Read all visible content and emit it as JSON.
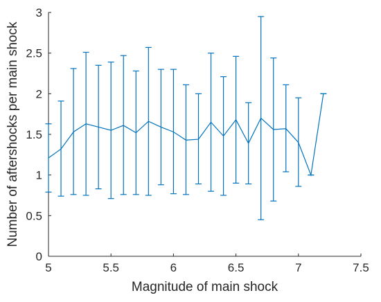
{
  "chart_data": {
    "type": "line",
    "title": "",
    "xlabel": "Magnitude of main shock",
    "ylabel": "Number of aftershocks per main shock",
    "xlim": [
      5,
      7.5
    ],
    "ylim": [
      0,
      3
    ],
    "xticks": [
      5,
      5.5,
      6,
      6.5,
      7,
      7.5
    ],
    "xtick_labels": [
      "5",
      "5.5",
      "6",
      "6.5",
      "7",
      "7.5"
    ],
    "yticks": [
      0,
      0.5,
      1,
      1.5,
      2,
      2.5,
      3
    ],
    "ytick_labels": [
      "0",
      "0.5",
      "1",
      "1.5",
      "2",
      "2.5",
      "3"
    ],
    "grid": false,
    "series": [
      {
        "color": "#0072BD",
        "x": [
          5.0,
          5.1,
          5.2,
          5.3,
          5.4,
          5.5,
          5.6,
          5.7,
          5.8,
          5.9,
          6.0,
          6.1,
          6.2,
          6.3,
          6.4,
          6.5,
          6.6,
          6.7,
          6.8,
          6.9,
          7.0,
          7.1,
          7.2
        ],
        "y": [
          1.21,
          1.32,
          1.53,
          1.63,
          1.59,
          1.55,
          1.61,
          1.52,
          1.66,
          1.59,
          1.53,
          1.43,
          1.44,
          1.65,
          1.48,
          1.68,
          1.39,
          1.7,
          1.56,
          1.57,
          1.4,
          1.0,
          2.0
        ],
        "err_low": [
          0.79,
          0.74,
          0.76,
          0.75,
          0.83,
          0.71,
          0.76,
          0.76,
          0.75,
          0.88,
          0.77,
          0.76,
          0.89,
          0.8,
          0.75,
          0.9,
          0.89,
          0.45,
          0.68,
          1.04,
          0.86,
          1.0,
          2.0
        ],
        "err_high": [
          1.63,
          1.91,
          2.31,
          2.51,
          2.35,
          2.39,
          2.47,
          2.28,
          2.57,
          2.3,
          2.3,
          2.11,
          2.0,
          2.5,
          2.21,
          2.46,
          1.89,
          2.95,
          2.44,
          2.11,
          1.95,
          1.0,
          2.0
        ]
      }
    ]
  }
}
